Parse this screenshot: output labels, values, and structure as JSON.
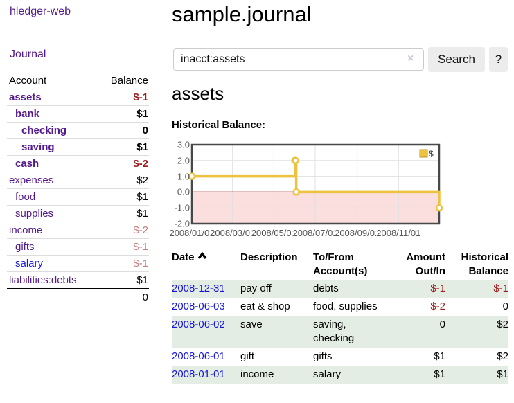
{
  "app": {
    "brand": "hledger-web",
    "nav": {
      "journal": "Journal"
    }
  },
  "colors": {
    "link_purple": "#551a8b",
    "link_blue": "#1515dd",
    "negative": "#9b1c1c",
    "negative_soft": "#c47f7f",
    "row_shade_green": "#e3ede3",
    "series_yellow": "#edc240",
    "negative_region_pink": "#fbdede",
    "zero_line_red": "#8b0000",
    "grid_gray": "#e0e0e0",
    "plot_border": "#484848",
    "button_gray": "#ececec"
  },
  "sidebar": {
    "headers": [
      "Account",
      "Balance"
    ],
    "rows": [
      {
        "name": "assets",
        "balance": "$-1",
        "indent": 0,
        "emphasis": true,
        "link_state": "visited",
        "balance_state": "negative"
      },
      {
        "name": "bank",
        "balance": "$1",
        "indent": 1,
        "emphasis": true,
        "link_state": "visited",
        "balance_state": "normal"
      },
      {
        "name": "checking",
        "balance": "0",
        "indent": 2,
        "emphasis": true,
        "link_state": "visited",
        "balance_state": "normal"
      },
      {
        "name": "saving",
        "balance": "$1",
        "indent": 2,
        "emphasis": true,
        "link_state": "visited",
        "balance_state": "normal"
      },
      {
        "name": "cash",
        "balance": "$-2",
        "indent": 1,
        "emphasis": true,
        "link_state": "visited",
        "balance_state": "negative"
      },
      {
        "name": "expenses",
        "balance": "$2",
        "indent": 0,
        "emphasis": false,
        "link_state": "visited",
        "balance_state": "normal"
      },
      {
        "name": "food",
        "balance": "$1",
        "indent": 1,
        "emphasis": false,
        "link_state": "visited",
        "balance_state": "normal"
      },
      {
        "name": "supplies",
        "balance": "$1",
        "indent": 1,
        "emphasis": false,
        "link_state": "visited",
        "balance_state": "normal"
      },
      {
        "name": "income",
        "balance": "$-2",
        "indent": 0,
        "emphasis": false,
        "link_state": "visited",
        "balance_state": "negative-soft"
      },
      {
        "name": "gifts",
        "balance": "$-1",
        "indent": 1,
        "emphasis": false,
        "link_state": "visited",
        "balance_state": "negative-soft"
      },
      {
        "name": "salary",
        "balance": "$-1",
        "indent": 1,
        "emphasis": false,
        "link_state": "unvisited",
        "balance_state": "negative-soft"
      },
      {
        "name": "liabilities:debts",
        "balance": "$1",
        "indent": 0,
        "emphasis": false,
        "link_state": "visited",
        "balance_state": "normal"
      }
    ],
    "total": "0"
  },
  "main": {
    "title": "sample.journal",
    "search": {
      "value": "inacct:assets",
      "clear_icon": "×",
      "button_label": "Search",
      "help_label": "?"
    },
    "account_heading": "assets",
    "section_label": "Historical Balance:"
  },
  "chart_data": {
    "type": "line",
    "step": true,
    "title": "Historical Balance",
    "series": [
      {
        "name": "$",
        "color": "#edc240",
        "points": [
          {
            "date": "2008-01-01",
            "value": 1
          },
          {
            "date": "2008-06-01",
            "value": 2
          },
          {
            "date": "2008-06-02",
            "value": 2
          },
          {
            "date": "2008-06-03",
            "value": 0
          },
          {
            "date": "2008-12-31",
            "value": -1
          }
        ]
      }
    ],
    "ylim": [
      -2,
      3
    ],
    "yticks": [
      {
        "value": 3,
        "label": "3.0"
      },
      {
        "value": 2,
        "label": "2.0"
      },
      {
        "value": 1,
        "label": "1.0"
      },
      {
        "value": 0,
        "label": "0.0"
      },
      {
        "value": -1,
        "label": "-1.0"
      },
      {
        "value": -2,
        "label": "-2.0"
      }
    ],
    "xticks": [
      {
        "date": "2008-01-01",
        "label": "2008/01/01"
      },
      {
        "date": "2008-03-01",
        "label": "2008/03/01"
      },
      {
        "date": "2008-05-01",
        "label": "2008/05/01"
      },
      {
        "date": "2008-07-01",
        "label": "2008/07/01"
      },
      {
        "date": "2008-09-01",
        "label": "2008/09/01"
      },
      {
        "date": "2008-11-01",
        "label": "2008/11/01"
      }
    ],
    "xrange_days": [
      0,
      365
    ],
    "grid": true,
    "legend": {
      "position": "top-right",
      "label": "$"
    },
    "negative_region_below": 0
  },
  "register": {
    "headers": [
      {
        "lines": [
          "Date"
        ],
        "sorted": "asc",
        "align": "left"
      },
      {
        "lines": [
          "Description"
        ],
        "align": "left"
      },
      {
        "lines": [
          "To/From",
          "Account(s)"
        ],
        "align": "left"
      },
      {
        "lines": [
          "Amount",
          "Out/In"
        ],
        "align": "right"
      },
      {
        "lines": [
          "Historical",
          "Balance"
        ],
        "align": "right"
      }
    ],
    "rows": [
      {
        "date": "2008-12-31",
        "description": "pay off",
        "accounts": "debts",
        "amount": "$-1",
        "amount_state": "negative",
        "balance": "$-1",
        "balance_state": "negative",
        "shaded": true
      },
      {
        "date": "2008-06-03",
        "description": "eat & shop",
        "accounts": "food, supplies",
        "amount": "$-2",
        "amount_state": "negative",
        "balance": "0",
        "balance_state": "normal",
        "shaded": false
      },
      {
        "date": "2008-06-02",
        "description": "save",
        "accounts": "saving, checking",
        "amount": "0",
        "amount_state": "normal",
        "balance": "$2",
        "balance_state": "normal",
        "shaded": true
      },
      {
        "date": "2008-06-01",
        "description": "gift",
        "accounts": "gifts",
        "amount": "$1",
        "amount_state": "normal",
        "balance": "$2",
        "balance_state": "normal",
        "shaded": false
      },
      {
        "date": "2008-01-01",
        "description": "income",
        "accounts": "salary",
        "amount": "$1",
        "amount_state": "normal",
        "balance": "$1",
        "balance_state": "normal",
        "shaded": true
      }
    ]
  }
}
